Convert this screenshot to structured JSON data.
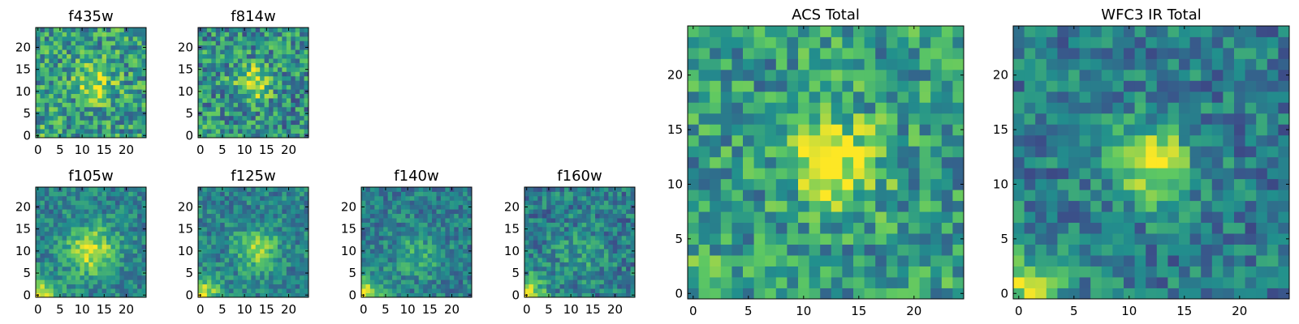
{
  "chart_data": {
    "type": "heatmap",
    "colormap": [
      "#440154",
      "#3b528b",
      "#21908d",
      "#5dc863",
      "#fde725"
    ],
    "panels": [
      {
        "id": "f435w",
        "title": "f435w",
        "xticks": [
          0,
          5,
          10,
          15,
          20
        ],
        "yticks": [
          0,
          5,
          10,
          15,
          20
        ],
        "xlim": [
          0,
          24
        ],
        "ylim": [
          0,
          24
        ],
        "peak": [
          13,
          12
        ],
        "peak_width": 3.0,
        "peak_amp": 0.35,
        "corner_glow": 0.05,
        "background": 0.55,
        "noise": 0.28
      },
      {
        "id": "f814w",
        "title": "f814w",
        "xticks": [
          0,
          5,
          10,
          15,
          20
        ],
        "yticks": [
          0,
          5,
          10,
          15,
          20
        ],
        "xlim": [
          0,
          24
        ],
        "ylim": [
          0,
          24
        ],
        "peak": [
          12,
          12
        ],
        "peak_width": 2.8,
        "peak_amp": 0.45,
        "corner_glow": 0.08,
        "background": 0.5,
        "noise": 0.28
      },
      {
        "id": "f105w",
        "title": "f105w",
        "xticks": [
          0,
          5,
          10,
          15,
          20
        ],
        "yticks": [
          0,
          5,
          10,
          15,
          20
        ],
        "xlim": [
          0,
          24
        ],
        "ylim": [
          0,
          24
        ],
        "peak": [
          12,
          10
        ],
        "peak_width": 4.0,
        "peak_amp": 0.45,
        "corner_glow": 0.45,
        "background": 0.45,
        "noise": 0.18
      },
      {
        "id": "f125w",
        "title": "f125w",
        "xticks": [
          0,
          5,
          10,
          15,
          20
        ],
        "yticks": [
          0,
          5,
          10,
          15,
          20
        ],
        "xlim": [
          0,
          24
        ],
        "ylim": [
          0,
          24
        ],
        "peak": [
          13,
          10
        ],
        "peak_width": 3.5,
        "peak_amp": 0.35,
        "corner_glow": 0.5,
        "background": 0.45,
        "noise": 0.18
      },
      {
        "id": "f140w",
        "title": "f140w",
        "xticks": [
          0,
          5,
          10,
          15,
          20
        ],
        "yticks": [
          0,
          5,
          10,
          15,
          20
        ],
        "xlim": [
          0,
          24
        ],
        "ylim": [
          0,
          24
        ],
        "peak": [
          12,
          9
        ],
        "peak_width": 4.0,
        "peak_amp": 0.2,
        "corner_glow": 0.55,
        "background": 0.42,
        "noise": 0.18
      },
      {
        "id": "f160w",
        "title": "f160w",
        "xticks": [
          0,
          5,
          10,
          15,
          20
        ],
        "yticks": [
          0,
          5,
          10,
          15,
          20
        ],
        "xlim": [
          0,
          24
        ],
        "ylim": [
          0,
          24
        ],
        "peak": [
          12,
          9
        ],
        "peak_width": 4.0,
        "peak_amp": 0.15,
        "corner_glow": 0.55,
        "background": 0.42,
        "noise": 0.2
      },
      {
        "id": "acs-total",
        "title": "ACS Total",
        "xticks": [
          0,
          5,
          10,
          15,
          20
        ],
        "yticks": [
          0,
          5,
          10,
          15,
          20
        ],
        "xlim": [
          0,
          24
        ],
        "ylim": [
          0,
          24
        ],
        "peak": [
          13,
          12
        ],
        "peak_width": 2.8,
        "peak_amp": 0.45,
        "corner_glow": 0.08,
        "background": 0.55,
        "noise": 0.25
      },
      {
        "id": "wfc3-ir-total",
        "title": "WFC3 IR Total",
        "xticks": [
          0,
          5,
          10,
          15,
          20
        ],
        "yticks": [
          0,
          5,
          10,
          15,
          20
        ],
        "xlim": [
          0,
          24
        ],
        "ylim": [
          0,
          24
        ],
        "peak": [
          12,
          12
        ],
        "peak_width": 2.5,
        "peak_amp": 0.55,
        "corner_glow": 0.4,
        "background": 0.42,
        "noise": 0.2
      }
    ]
  }
}
